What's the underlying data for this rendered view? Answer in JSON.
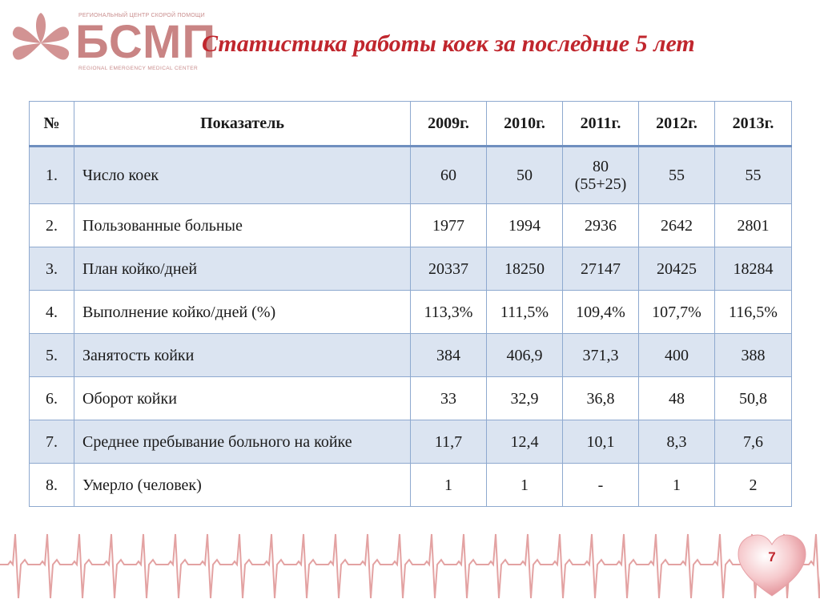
{
  "logo": {
    "tagline_top": "РЕГИОНАЛЬНЫЙ ЦЕНТР СКОРОЙ ПОМОЩИ",
    "wordmark": "БСМП",
    "tagline_bottom": "REGIONAL EMERGENCY MEDICAL CENTER"
  },
  "title": "Статистика работы коек за последние 5 лет",
  "table": {
    "headers": [
      "№",
      "Показатель",
      "2009г.",
      "2010г.",
      "2011г.",
      "2012г.",
      "2013г."
    ],
    "rows": [
      [
        "1.",
        "Число коек",
        "60",
        "50",
        "80 (55+25)",
        "55",
        "55"
      ],
      [
        "2.",
        "Пользованные больные",
        "1977",
        "1994",
        "2936",
        "2642",
        "2801"
      ],
      [
        "3.",
        "План койко/дней",
        "20337",
        "18250",
        "27147",
        "20425",
        "18284"
      ],
      [
        "4.",
        "Выполнение койко/дней (%)",
        "113,3%",
        "111,5%",
        "109,4%",
        "107,7%",
        "116,5%"
      ],
      [
        "5.",
        "Занятость койки",
        "384",
        "406,9",
        "371,3",
        "400",
        "388"
      ],
      [
        "6.",
        "Оборот койки",
        "33",
        "32,9",
        "36,8",
        "48",
        "50,8"
      ],
      [
        "7.",
        "Среднее пребывание больного на койке",
        "11,7",
        "12,4",
        "10,1",
        "8,3",
        "7,6"
      ],
      [
        "8.",
        "Умерло (человек)",
        "1",
        "1",
        "-",
        "1",
        "2"
      ]
    ]
  },
  "page_number": "7",
  "colors": {
    "title": "#c0262d",
    "logo": "#c98484",
    "table_border": "#8ea9cf",
    "row_band": "#dbe4f1",
    "ecg": "#e3a2a2"
  }
}
